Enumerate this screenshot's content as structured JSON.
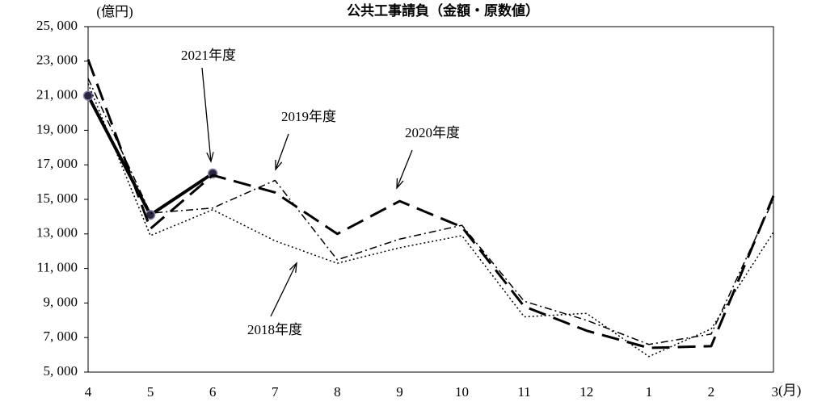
{
  "chart_data": {
    "type": "line",
    "title": "公共工事請負（金額・原数値）",
    "ylabel": "(億円)",
    "xlabel": "(月)",
    "categories": [
      "4",
      "5",
      "6",
      "7",
      "8",
      "9",
      "10",
      "11",
      "12",
      "1",
      "2",
      "3"
    ],
    "ylim": [
      5000,
      25000
    ],
    "yticks": [
      {
        "value": 5000,
        "label": "5, 000"
      },
      {
        "value": 7000,
        "label": "7, 000"
      },
      {
        "value": 9000,
        "label": "9, 000"
      },
      {
        "value": 11000,
        "label": "11, 000"
      },
      {
        "value": 13000,
        "label": "13, 000"
      },
      {
        "value": 15000,
        "label": "15, 000"
      },
      {
        "value": 17000,
        "label": "17, 000"
      },
      {
        "value": 19000,
        "label": "19, 000"
      },
      {
        "value": 21000,
        "label": "21, 000"
      },
      {
        "value": 23000,
        "label": "23, 000"
      },
      {
        "value": 25000,
        "label": "25, 000"
      }
    ],
    "grid": false,
    "series": [
      {
        "name": "2021年度",
        "color": "#000000",
        "style": "solid",
        "marker": true,
        "values": [
          21000,
          14100,
          16500,
          null,
          null,
          null,
          null,
          null,
          null,
          null,
          null,
          null
        ]
      },
      {
        "name": "2020年度",
        "color": "#000000",
        "style": "longdash",
        "marker": false,
        "values": [
          23100,
          13300,
          16400,
          15400,
          13000,
          14900,
          13400,
          8800,
          7400,
          6400,
          6500,
          15200
        ]
      },
      {
        "name": "2019年度",
        "color": "#000000",
        "style": "dashdot",
        "marker": false,
        "values": [
          22000,
          14200,
          14500,
          16100,
          11500,
          12700,
          13500,
          9100,
          8000,
          6600,
          7200,
          15000
        ]
      },
      {
        "name": "2018年度",
        "color": "#000000",
        "style": "dotted",
        "marker": false,
        "values": [
          21700,
          12900,
          14400,
          12600,
          11300,
          12200,
          12900,
          8200,
          8400,
          5900,
          7500,
          13100
        ]
      }
    ]
  }
}
